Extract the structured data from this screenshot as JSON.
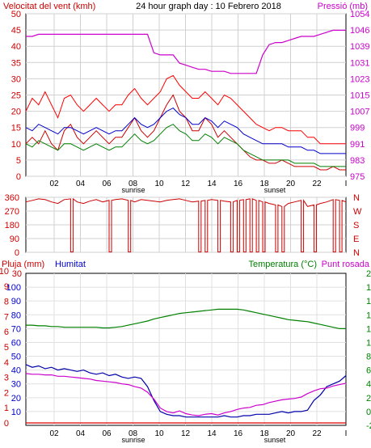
{
  "chart_data": [
    {
      "type": "line",
      "title": "24 hour graph day : 10 Febrero 2018",
      "left_label": "Velocitat del vent (kmh)",
      "right_label": "Pressió (mb)",
      "left_ticks": [
        "0",
        "5",
        "10",
        "15",
        "20",
        "25",
        "30",
        "35",
        "40",
        "45",
        "50"
      ],
      "right_ticks": [
        "975",
        "983",
        "991",
        "999",
        "1007",
        "1015",
        "1023",
        "1031",
        "1039",
        "1046",
        "1054"
      ],
      "ylim": [
        0,
        50
      ],
      "y2lim": [
        975,
        1054
      ],
      "x_ticks": [
        "02",
        "04",
        "06",
        "08",
        "10",
        "12",
        "14",
        "16",
        "18",
        "20",
        "22"
      ],
      "x_end_tick": "I",
      "sunrise_label": "sunrise",
      "sunset_label": "sunset",
      "series": [
        {
          "color": "#ff0000",
          "values": [
            20,
            24,
            22,
            26,
            22,
            18,
            24,
            25,
            22,
            20,
            22,
            24,
            22,
            20,
            22,
            22,
            25,
            27,
            24,
            22,
            24,
            26,
            30,
            31,
            28,
            26,
            24,
            24,
            26,
            24,
            22,
            25,
            24,
            22,
            20,
            18,
            16,
            15,
            14,
            15,
            15,
            14,
            14,
            14,
            12,
            12,
            10,
            10,
            10,
            10,
            10
          ]
        },
        {
          "color": "#cc0000",
          "values": [
            10,
            12,
            10,
            14,
            10,
            8,
            14,
            16,
            12,
            10,
            12,
            14,
            12,
            10,
            12,
            12,
            15,
            18,
            14,
            12,
            14,
            18,
            22,
            25,
            20,
            18,
            14,
            14,
            18,
            16,
            12,
            14,
            12,
            10,
            8,
            6,
            5,
            5,
            4,
            4,
            5,
            4,
            3,
            3,
            3,
            3,
            2,
            2,
            3,
            2,
            2
          ]
        },
        {
          "color": "#0000cc",
          "values": [
            15,
            14,
            16,
            15,
            14,
            13,
            15,
            15,
            14,
            13,
            14,
            15,
            14,
            13,
            14,
            14,
            16,
            18,
            16,
            15,
            16,
            18,
            20,
            21,
            19,
            18,
            16,
            16,
            18,
            17,
            15,
            17,
            16,
            15,
            13,
            12,
            11,
            10,
            10,
            10,
            10,
            9,
            9,
            9,
            8,
            8,
            7,
            7,
            7,
            7,
            7
          ]
        },
        {
          "color": "#008000",
          "values": [
            10,
            9,
            11,
            10,
            9,
            8,
            10,
            10,
            9,
            8,
            9,
            10,
            9,
            8,
            9,
            9,
            11,
            13,
            11,
            10,
            11,
            13,
            15,
            16,
            14,
            13,
            11,
            11,
            13,
            12,
            10,
            12,
            11,
            10,
            8,
            7,
            6,
            5,
            5,
            5,
            5,
            5,
            4,
            4,
            4,
            4,
            3,
            3,
            3,
            3,
            3
          ]
        },
        {
          "color": "#cc00cc",
          "axis": "right",
          "values": [
            1043,
            1043,
            1044,
            1044,
            1044,
            1044,
            1044,
            1044,
            1044,
            1044,
            1044,
            1044,
            1044,
            1044,
            1044,
            1044,
            1044,
            1044,
            1044,
            1044,
            1035,
            1034,
            1034,
            1034,
            1030,
            1029,
            1028,
            1027,
            1027,
            1026,
            1026,
            1026,
            1025,
            1025,
            1025,
            1025,
            1025,
            1034,
            1039,
            1040,
            1040,
            1041,
            1042,
            1043,
            1043,
            1043,
            1044,
            1045,
            1046,
            1046,
            1046
          ]
        }
      ]
    },
    {
      "type": "line",
      "left_ticks": [
        "360",
        "270",
        "180",
        "90",
        "0"
      ],
      "right_ticks": [
        "N",
        "W",
        "S",
        "E",
        "N"
      ],
      "ylim": [
        0,
        360
      ],
      "series": [
        {
          "color": "#cc0000",
          "values": [
            330,
            340,
            350,
            345,
            330,
            320,
            345,
            350,
            330,
            320,
            335,
            345,
            330,
            340,
            345,
            350,
            340,
            330,
            345,
            340,
            335,
            330,
            340,
            345,
            350,
            340,
            330,
            335,
            340,
            345,
            340,
            335,
            330,
            340,
            345,
            350,
            340,
            330,
            320,
            310,
            300,
            320,
            330,
            340,
            300,
            310,
            320,
            330,
            345,
            340,
            330
          ]
        }
      ],
      "drop_indices": [
        7,
        13,
        16,
        27,
        28,
        30,
        32,
        33,
        34,
        35,
        36,
        37,
        39,
        40,
        43,
        45,
        48,
        49
      ]
    },
    {
      "type": "line",
      "left_label": "Pluja (mm)",
      "left2_label": "Humitat",
      "right_label": "Temperatura (°C)",
      "right2_label": "Punt rosada",
      "rain_ticks": [
        "0",
        "1",
        "2",
        "3",
        "4",
        "5",
        "6",
        "7",
        "8",
        "9",
        "10"
      ],
      "humidity_ticks": [
        "10",
        "20",
        "30",
        "40",
        "50",
        "60",
        "70",
        "80",
        "90",
        "100"
      ],
      "temp_ticks": [
        "-2",
        "0",
        "2",
        "4",
        "6",
        "8",
        "10",
        "12",
        "14",
        "16",
        "18",
        "20"
      ],
      "top_left_tick": "30",
      "x_ticks": [
        "02",
        "04",
        "06",
        "08",
        "10",
        "12",
        "14",
        "16",
        "18",
        "20",
        "22"
      ],
      "x_end_tick": "I",
      "sunrise_label": "sunrise",
      "sunset_label": "sunset",
      "ylim": [
        -2,
        20
      ],
      "series": [
        {
          "name": "Temperatura (°C)",
          "color": "#008000",
          "values": [
            12.5,
            12.5,
            12.4,
            12.4,
            12.3,
            12.3,
            12.2,
            12.2,
            12.2,
            12.2,
            12.2,
            12.2,
            12.1,
            12.1,
            12.2,
            12.3,
            12.5,
            12.7,
            12.9,
            13.1,
            13.4,
            13.6,
            13.8,
            14.0,
            14.2,
            14.3,
            14.4,
            14.5,
            14.6,
            14.7,
            14.8,
            14.8,
            14.8,
            14.8,
            14.7,
            14.5,
            14.3,
            14.1,
            13.9,
            13.7,
            13.5,
            13.3,
            13.2,
            13.1,
            13.0,
            12.8,
            12.6,
            12.4,
            12.2,
            12.0,
            12.0
          ]
        },
        {
          "name": "Humitat",
          "color": "#0000aa",
          "axis": "humidity",
          "values": [
            44,
            42,
            43,
            41,
            42,
            40,
            41,
            40,
            39,
            40,
            38,
            37,
            38,
            36,
            37,
            35,
            34,
            35,
            34,
            28,
            18,
            10,
            8,
            7,
            7,
            6,
            6,
            6,
            6,
            6,
            6,
            7,
            6,
            6,
            7,
            7,
            8,
            8,
            8,
            9,
            10,
            9,
            10,
            10,
            11,
            18,
            22,
            28,
            30,
            32,
            36
          ]
        },
        {
          "name": "Punt rosada",
          "color": "#cc00cc",
          "values": [
            5.5,
            5.4,
            5.4,
            5.3,
            5.3,
            5.1,
            5.1,
            5.0,
            4.9,
            4.8,
            4.7,
            4.5,
            4.4,
            4.3,
            4.2,
            4.0,
            3.9,
            3.6,
            3.4,
            2.8,
            1.8,
            0.5,
            0.0,
            -0.2,
            0.1,
            -0.3,
            -0.5,
            -0.6,
            -0.4,
            -0.3,
            -0.5,
            -0.2,
            0.0,
            0.3,
            0.5,
            0.6,
            0.9,
            1.0,
            1.3,
            1.5,
            1.7,
            1.8,
            1.9,
            2.1,
            2.6,
            3.0,
            3.3,
            3.4,
            3.7,
            3.9,
            4.1
          ]
        },
        {
          "name": "Pluja (mm)",
          "color": "#dd0000",
          "axis": "rain",
          "values": [
            0,
            0,
            0,
            0,
            0,
            0,
            0,
            0,
            0,
            0,
            0,
            0,
            0,
            0,
            0,
            0,
            0,
            0,
            0,
            0,
            0,
            0,
            0,
            0,
            0,
            0,
            0,
            0,
            0,
            0,
            0,
            0,
            0,
            0,
            0,
            0,
            0,
            0,
            0,
            0,
            0,
            0,
            0,
            0,
            0,
            0,
            0,
            0,
            0,
            0,
            0
          ]
        }
      ]
    }
  ]
}
